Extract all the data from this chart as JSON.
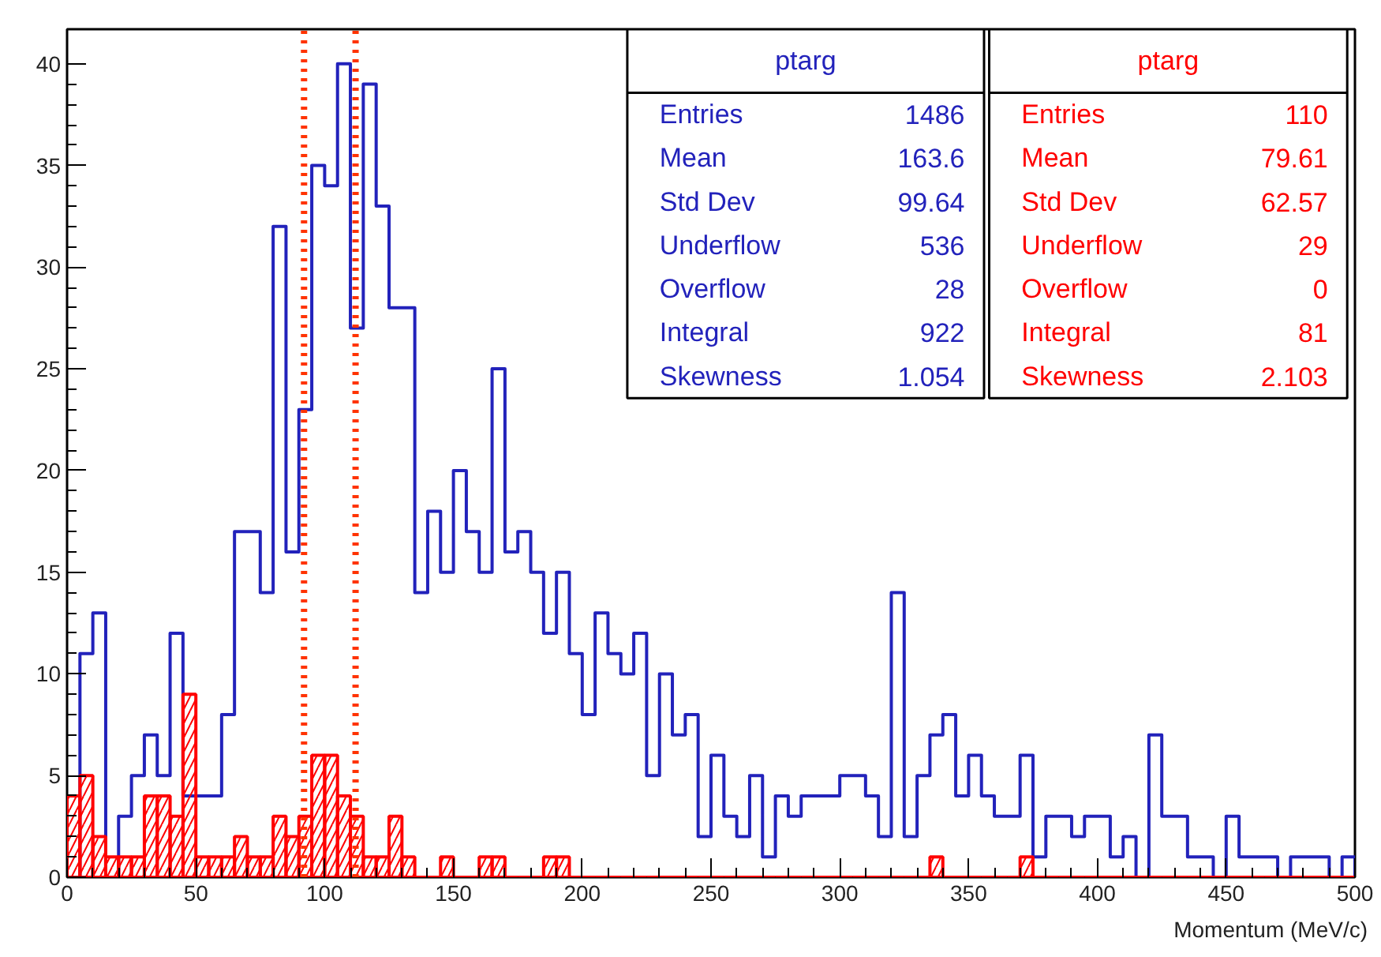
{
  "chart_data": {
    "type": "histogram",
    "xlabel": "Momentum (MeV/c)",
    "bins": [
      0,
      5,
      10,
      15,
      20,
      25,
      30,
      35,
      40,
      45,
      50,
      55,
      60,
      65,
      70,
      75,
      80,
      85,
      90,
      95,
      100,
      105,
      110,
      115,
      120,
      125,
      130,
      135,
      140,
      145,
      150,
      155,
      160,
      165,
      170,
      175,
      180,
      185,
      190,
      195,
      200,
      205,
      210,
      215,
      220,
      225,
      230,
      235,
      240,
      245,
      250,
      255,
      260,
      265,
      270,
      275,
      280,
      285,
      290,
      295,
      300,
      305,
      310,
      315,
      320,
      325,
      330,
      335,
      340,
      345,
      350,
      355,
      360,
      365,
      370,
      375,
      380,
      385,
      390,
      395,
      400,
      405,
      410,
      415,
      420,
      425,
      430,
      435,
      440,
      445,
      450,
      455,
      460,
      465,
      470,
      475,
      480,
      485,
      490,
      495,
      500
    ],
    "series": [
      {
        "name": "ptarg",
        "color": "#2222bb",
        "values": [
          0,
          11,
          13,
          0,
          3,
          5,
          7,
          5,
          12,
          4,
          4,
          4,
          8,
          17,
          17,
          14,
          32,
          16,
          23,
          35,
          34,
          40,
          27,
          39,
          33,
          28,
          28,
          14,
          18,
          15,
          20,
          17,
          15,
          25,
          16,
          17,
          15,
          12,
          15,
          11,
          8,
          13,
          11,
          10,
          12,
          5,
          10,
          7,
          8,
          2,
          6,
          3,
          2,
          5,
          1,
          4,
          3,
          4,
          4,
          4,
          5,
          5,
          4,
          2,
          14,
          2,
          5,
          7,
          8,
          4,
          6,
          4,
          3,
          3,
          6,
          1,
          3,
          3,
          2,
          3,
          3,
          1,
          2,
          0,
          7,
          3,
          3,
          1,
          1,
          0,
          3,
          1,
          1,
          1,
          0,
          1,
          1,
          1,
          0,
          1
        ]
      },
      {
        "name": "ptarg",
        "color": "#ff0000",
        "values": [
          4,
          5,
          2,
          1,
          1,
          1,
          4,
          4,
          3,
          9,
          1,
          1,
          1,
          2,
          1,
          1,
          3,
          2,
          3,
          6,
          6,
          4,
          3,
          1,
          1,
          3,
          1,
          0,
          0,
          1,
          0,
          0,
          1,
          1,
          0,
          0,
          0,
          1,
          1,
          0,
          0,
          0,
          0,
          0,
          0,
          0,
          0,
          0,
          0,
          0,
          0,
          0,
          0,
          0,
          0,
          0,
          0,
          0,
          0,
          0,
          0,
          0,
          0,
          0,
          0,
          0,
          0,
          1,
          0,
          0,
          0,
          0,
          0,
          0,
          1,
          0,
          0,
          0,
          0,
          0,
          0,
          0,
          0,
          0,
          0,
          0,
          0,
          0,
          0,
          0,
          0,
          0,
          0,
          0,
          0,
          0,
          0,
          0,
          0,
          0
        ]
      }
    ],
    "annotations": [
      "Entries",
      "1486",
      "Mean",
      "163.6",
      "Std Dev",
      "99.64",
      "Underflow",
      "536",
      "Overflow",
      "28",
      "Integral",
      "922",
      "Skewness",
      "1.054",
      "Entries",
      "110",
      "Mean",
      "79.61",
      "Std Dev",
      "62.57",
      "Underflow",
      "29",
      "Overflow",
      "0",
      "Integral",
      "81",
      "Skewness",
      "2.103"
    ],
    "ref_lines": [
      {
        "axis": "x",
        "value": 92,
        "color": "#ff3300",
        "line_style": "dotted"
      },
      {
        "axis": "x",
        "value": 112,
        "color": "#ff3300",
        "line_style": "dotted"
      }
    ],
    "xlim": [
      0,
      500
    ],
    "ylim": [
      0,
      41.7
    ],
    "xticks": [
      0,
      50,
      100,
      150,
      200,
      250,
      300,
      350,
      400,
      450,
      500
    ],
    "yticks": [
      0,
      5,
      10,
      15,
      20,
      25,
      30,
      35,
      40
    ],
    "grid": false,
    "legend": false
  }
}
